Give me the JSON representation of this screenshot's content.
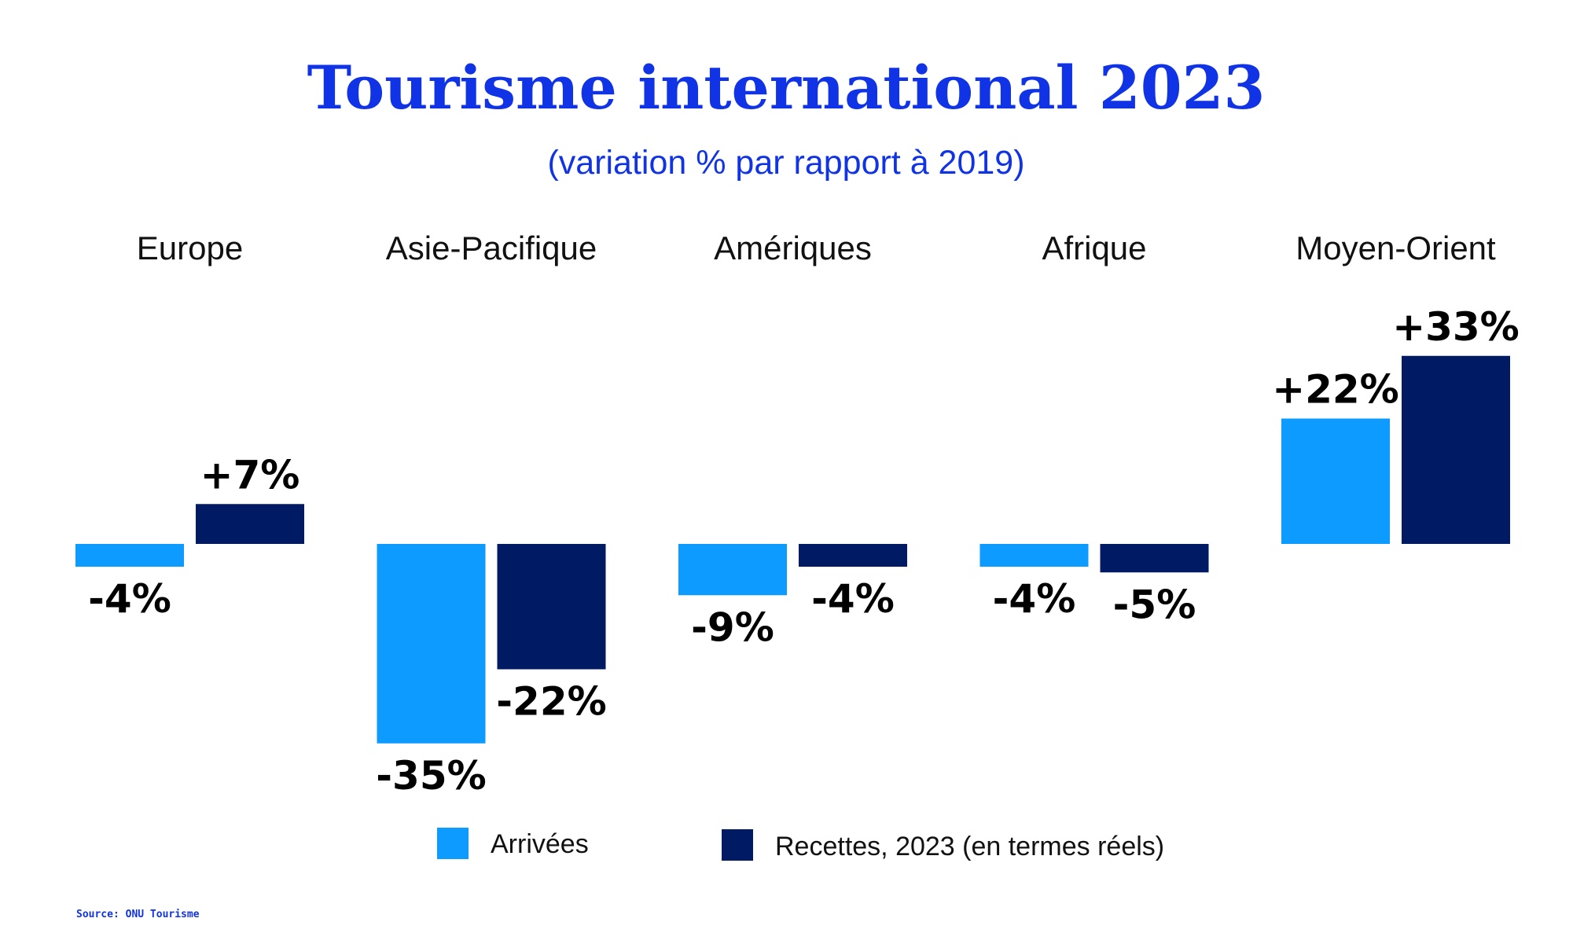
{
  "colors": {
    "title": "#1133e6",
    "arrivals": "#0d9bff",
    "receipts": "#001a63",
    "text": "#000000"
  },
  "source": "Source: ONU Tourisme",
  "chart_data": {
    "type": "bar",
    "title": "Tourisme international 2023",
    "subtitle": "(variation % par rapport à 2019)",
    "xlabel": "",
    "ylabel": "",
    "categories": [
      "Europe",
      "Asie-Pacifique",
      "Amériques",
      "Afrique",
      "Moyen-Orient"
    ],
    "series": [
      {
        "name": "Arrivées",
        "values": [
          -4,
          -35,
          -9,
          -4,
          22
        ],
        "labels": [
          "-4%",
          "-35%",
          "-9%",
          "-4%",
          "+22%"
        ]
      },
      {
        "name": "Recettes, 2023 (en termes réels)",
        "values": [
          7,
          -22,
          -4,
          -5,
          33
        ],
        "labels": [
          "+7%",
          "-22%",
          "-4%",
          "-5%",
          "+33%"
        ]
      }
    ],
    "ylim": [
      -35,
      33
    ],
    "grid": false,
    "legend": "bottom-center"
  }
}
